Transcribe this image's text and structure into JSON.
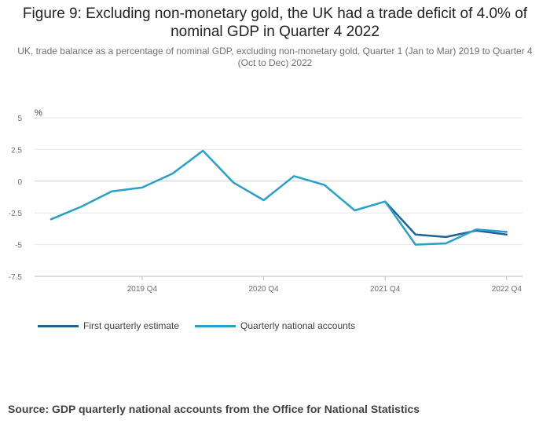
{
  "title": "Figure 9: Excluding non-monetary gold, the UK had a trade deficit of 4.0% of nominal GDP in Quarter 4 2022",
  "subtitle": "UK, trade balance as a percentage of nominal GDP, excluding non-monetary gold, Quarter 1 (Jan to Mar) 2019 to Quarter 4 (Oct to Dec) 2022",
  "source": "Source: GDP quarterly national accounts from the Office for National Statistics",
  "colors": {
    "first_estimate": "#206095",
    "national_accounts": "#27a0cc",
    "grid": "#e6e6e6",
    "axis_text": "#707071"
  },
  "chart_data": {
    "type": "line",
    "title": "Figure 9: Excluding non-monetary gold, the UK had a trade deficit of 4.0% of nominal GDP in Quarter 4 2022",
    "subtitle": "UK, trade balance as a percentage of nominal GDP, excluding non-monetary gold, Quarter 1 (Jan to Mar) 2019 to Quarter 4 (Oct to Dec) 2022",
    "ylabel": "%",
    "xlabel": "",
    "ylim": [
      -7.5,
      5
    ],
    "yticks": [
      5,
      2.5,
      0,
      -2.5,
      -5,
      -7.5
    ],
    "ytick_labels": [
      "5",
      "2.5",
      "0",
      "-2.5",
      "-5",
      "-7.5"
    ],
    "grid": true,
    "legend_position": "bottom-left",
    "categories": [
      "2019 Q1",
      "2019 Q2",
      "2019 Q3",
      "2019 Q4",
      "2020 Q1",
      "2020 Q2",
      "2020 Q3",
      "2020 Q4",
      "2021 Q1",
      "2021 Q2",
      "2021 Q3",
      "2021 Q4",
      "2022 Q1",
      "2022 Q2",
      "2022 Q3",
      "2022 Q4"
    ],
    "xtick_labels": [
      "2019 Q4",
      "2020 Q4",
      "2021 Q4",
      "2022 Q4"
    ],
    "series": [
      {
        "name": "First quarterly estimate",
        "values": [
          null,
          null,
          null,
          null,
          null,
          null,
          null,
          null,
          null,
          null,
          null,
          -1.6,
          -4.2,
          -4.4,
          -3.9,
          -4.2
        ]
      },
      {
        "name": "Quarterly national accounts",
        "values": [
          -3.0,
          -2.0,
          -0.8,
          -0.5,
          0.6,
          2.4,
          -0.1,
          -1.5,
          0.4,
          -0.3,
          -2.3,
          -1.6,
          -5.0,
          -4.9,
          -3.8,
          -4.0
        ]
      }
    ]
  }
}
